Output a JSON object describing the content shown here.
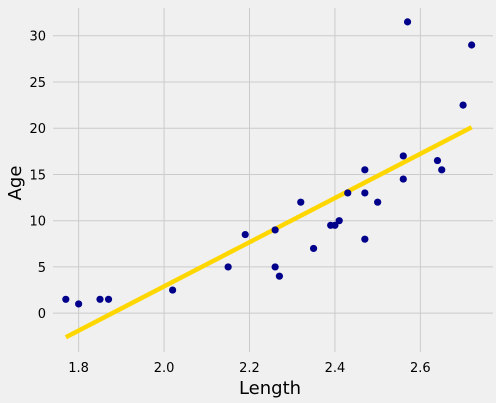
{
  "chart_data": {
    "type": "scatter",
    "title": "",
    "xlabel": "Length",
    "ylabel": "Age",
    "xlim": [
      1.74,
      2.77
    ],
    "ylim": [
      -4.2,
      33.0
    ],
    "xticks": [
      1.8,
      2.0,
      2.2,
      2.4,
      2.6
    ],
    "xtick_labels": [
      "1.8",
      "2.0",
      "2.2",
      "2.4",
      "2.6"
    ],
    "yticks": [
      0,
      5,
      10,
      15,
      20,
      25,
      30
    ],
    "ytick_labels": [
      "0",
      "5",
      "10",
      "15",
      "20",
      "25",
      "30"
    ],
    "grid": true,
    "legend": "none",
    "colors": {
      "points": "#00008b",
      "fit_line": "#ffd700",
      "grid": "#cbcbcb",
      "background": "#f0f0f0"
    },
    "series": [
      {
        "kind": "scatter",
        "points": [
          [
            1.77,
            1.5
          ],
          [
            1.8,
            1.0
          ],
          [
            1.85,
            1.5
          ],
          [
            1.87,
            1.5
          ],
          [
            2.02,
            2.5
          ],
          [
            2.15,
            5.0
          ],
          [
            2.19,
            8.5
          ],
          [
            2.26,
            9.0
          ],
          [
            2.26,
            5.0
          ],
          [
            2.27,
            4.0
          ],
          [
            2.32,
            12.0
          ],
          [
            2.35,
            7.0
          ],
          [
            2.39,
            9.5
          ],
          [
            2.4,
            9.5
          ],
          [
            2.41,
            10.0
          ],
          [
            2.43,
            13.0
          ],
          [
            2.47,
            15.5
          ],
          [
            2.47,
            13.0
          ],
          [
            2.47,
            8.0
          ],
          [
            2.5,
            12.0
          ],
          [
            2.56,
            17.0
          ],
          [
            2.56,
            14.5
          ],
          [
            2.57,
            31.5
          ],
          [
            2.64,
            16.5
          ],
          [
            2.65,
            15.5
          ],
          [
            2.7,
            22.5
          ],
          [
            2.72,
            29.0
          ]
        ]
      },
      {
        "kind": "line",
        "points": [
          [
            1.77,
            -2.6
          ],
          [
            2.72,
            20.1
          ]
        ]
      }
    ]
  }
}
